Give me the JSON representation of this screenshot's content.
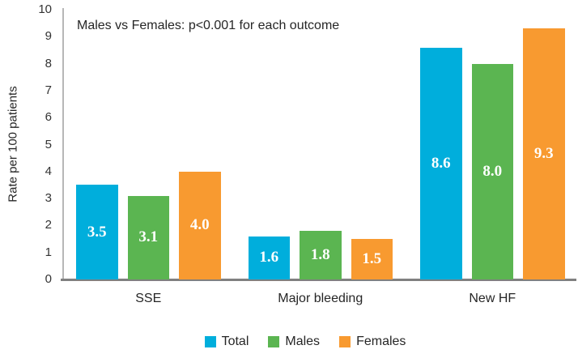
{
  "chart_data": {
    "type": "bar",
    "annotation": "Males vs Females: p<0.001 for each outcome",
    "ylabel": "Rate per 100 patients",
    "xlabel": "",
    "ylim": [
      0,
      10
    ],
    "ytick_step": 1,
    "grid": false,
    "legend_position": "bottom",
    "value_labels": true,
    "value_label_format": "1-decimal",
    "categories": [
      "SSE",
      "Major bleeding",
      "New HF"
    ],
    "series": [
      {
        "name": "Total",
        "color": "#00AEDC",
        "values": [
          3.5,
          1.6,
          8.6
        ]
      },
      {
        "name": "Males",
        "color": "#5BB551",
        "values": [
          3.1,
          1.8,
          8.0
        ]
      },
      {
        "name": "Females",
        "color": "#F89A30",
        "values": [
          4.0,
          1.5,
          9.3
        ]
      }
    ]
  },
  "colors": {
    "y_axis_line": "#B7B7B7",
    "x_axis_line": "#808080",
    "text": "#262626",
    "value_label_text": "#FFFFFF"
  }
}
